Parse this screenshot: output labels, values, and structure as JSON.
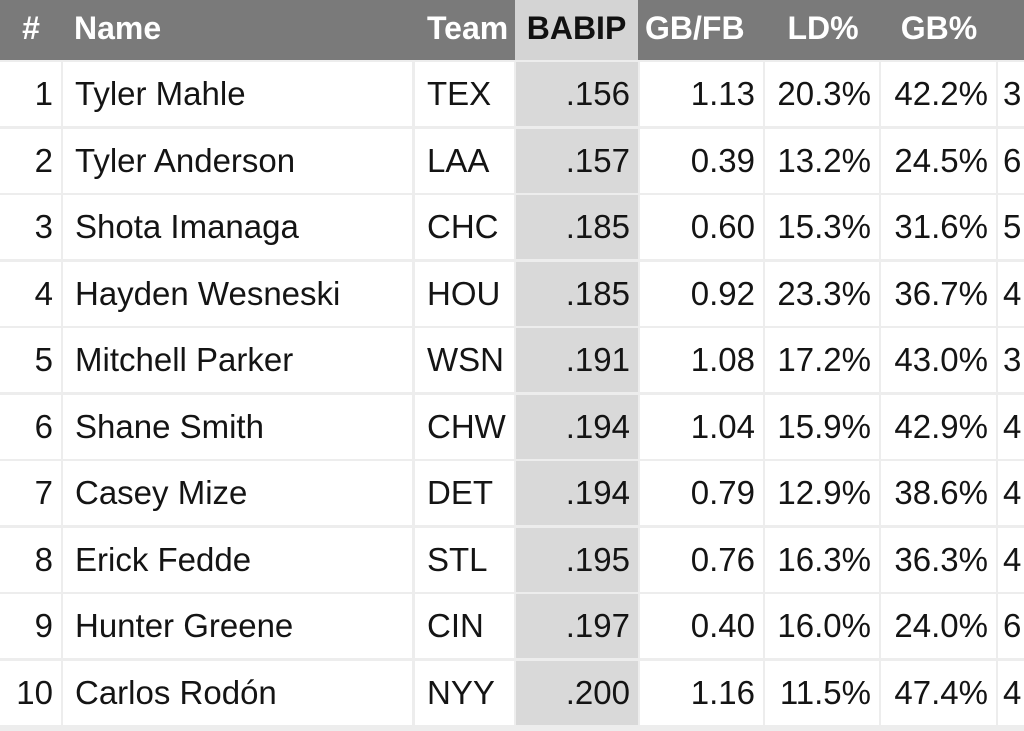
{
  "columns": {
    "rank": "#",
    "name": "Name",
    "team": "Team",
    "babip": "BABIP",
    "gbfb": "GB/FB",
    "ld": "LD%",
    "gb": "GB%"
  },
  "sorted_column": "BABIP",
  "colors": {
    "header_bg": "#7a7a7a",
    "header_text": "#ffffff",
    "sorted_header_bg": "#d4d4d4",
    "sorted_cell_bg": "#d9d9d9",
    "grid_lines": "#ededed"
  },
  "rows": [
    {
      "rank": "1",
      "name": "Tyler Mahle",
      "team": "TEX",
      "babip": ".156",
      "gbfb": "1.13",
      "ld": "20.3%",
      "gb": "42.2%",
      "next": "3"
    },
    {
      "rank": "2",
      "name": "Tyler Anderson",
      "team": "LAA",
      "babip": ".157",
      "gbfb": "0.39",
      "ld": "13.2%",
      "gb": "24.5%",
      "next": "6"
    },
    {
      "rank": "3",
      "name": "Shota Imanaga",
      "team": "CHC",
      "babip": ".185",
      "gbfb": "0.60",
      "ld": "15.3%",
      "gb": "31.6%",
      "next": "5"
    },
    {
      "rank": "4",
      "name": "Hayden Wesneski",
      "team": "HOU",
      "babip": ".185",
      "gbfb": "0.92",
      "ld": "23.3%",
      "gb": "36.7%",
      "next": "4"
    },
    {
      "rank": "5",
      "name": "Mitchell Parker",
      "team": "WSN",
      "babip": ".191",
      "gbfb": "1.08",
      "ld": "17.2%",
      "gb": "43.0%",
      "next": "3"
    },
    {
      "rank": "6",
      "name": "Shane Smith",
      "team": "CHW",
      "babip": ".194",
      "gbfb": "1.04",
      "ld": "15.9%",
      "gb": "42.9%",
      "next": "4"
    },
    {
      "rank": "7",
      "name": "Casey Mize",
      "team": "DET",
      "babip": ".194",
      "gbfb": "0.79",
      "ld": "12.9%",
      "gb": "38.6%",
      "next": "4"
    },
    {
      "rank": "8",
      "name": "Erick Fedde",
      "team": "STL",
      "babip": ".195",
      "gbfb": "0.76",
      "ld": "16.3%",
      "gb": "36.3%",
      "next": "4"
    },
    {
      "rank": "9",
      "name": "Hunter Greene",
      "team": "CIN",
      "babip": ".197",
      "gbfb": "0.40",
      "ld": "16.0%",
      "gb": "24.0%",
      "next": "6"
    },
    {
      "rank": "10",
      "name": "Carlos Rodón",
      "team": "NYY",
      "babip": ".200",
      "gbfb": "1.16",
      "ld": "11.5%",
      "gb": "47.4%",
      "next": "4"
    }
  ]
}
